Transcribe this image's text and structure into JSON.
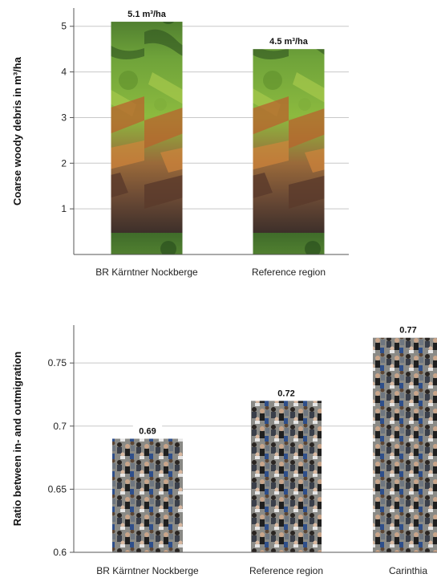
{
  "chart_data": [
    {
      "type": "bar",
      "title": "",
      "xlabel": "",
      "ylabel": "Coarse woody debris in m³/ha",
      "categories": [
        "BR Kärntner Nockberge",
        "Reference region"
      ],
      "values": [
        5.1,
        4.5
      ],
      "data_labels": [
        "5.1 m³/ha",
        "4.5 m³/ha"
      ],
      "yticks": [
        1,
        2,
        3,
        4,
        5
      ],
      "ylim": [
        0,
        5.4
      ],
      "grid": true,
      "bar_fill": "forest photograph",
      "colors": {
        "grid": "#c8c8c8",
        "axis": "#555555"
      }
    },
    {
      "type": "bar",
      "title": "",
      "xlabel": "",
      "ylabel": "Ratio between in- and outmigration",
      "categories": [
        "BR Kärntner Nockberge",
        "Reference region",
        "Carinthia"
      ],
      "values": [
        0.69,
        0.72,
        0.77
      ],
      "data_labels": [
        "0.69",
        "0.72",
        "0.77"
      ],
      "yticks": [
        "0.6",
        "0.65",
        "0.7",
        "0.75"
      ],
      "ylim": [
        0.6,
        0.78
      ],
      "grid": true,
      "bar_fill": "crowd photograph",
      "colors": {
        "grid": "#c8c8c8",
        "axis": "#555555"
      }
    }
  ]
}
